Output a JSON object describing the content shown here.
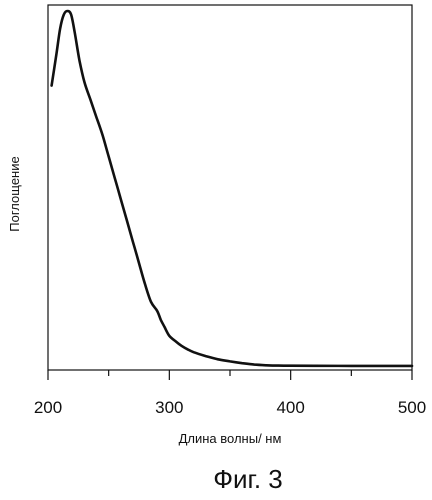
{
  "chart_data": {
    "type": "line",
    "title": "",
    "xlabel": "Длина волны/ нм",
    "ylabel": "Поглощение",
    "xlim": [
      200,
      500
    ],
    "ylim": [
      0,
      1
    ],
    "x_ticks": [
      "200",
      "300",
      "400",
      "500"
    ],
    "y_ticks_labeled": false,
    "grid": false,
    "legend": "none",
    "series": [
      {
        "color": "#111111",
        "x": [
          203,
          207,
          210,
          213,
          216,
          219,
          222,
          226,
          230,
          235,
          240,
          245,
          250,
          255,
          260,
          265,
          270,
          275,
          280,
          285,
          290,
          293,
          296,
          300,
          305,
          310,
          315,
          320,
          330,
          340,
          350,
          360,
          370,
          380,
          390,
          400,
          420,
          450,
          480,
          500
        ],
        "y": [
          0.79,
          0.88,
          0.95,
          0.99,
          1.0,
          0.99,
          0.94,
          0.86,
          0.8,
          0.75,
          0.7,
          0.65,
          0.59,
          0.53,
          0.47,
          0.41,
          0.35,
          0.29,
          0.23,
          0.18,
          0.155,
          0.13,
          0.11,
          0.085,
          0.07,
          0.057,
          0.047,
          0.039,
          0.028,
          0.019,
          0.013,
          0.008,
          0.004,
          0.002,
          0.001,
          0.0008,
          0.0005,
          0.0004,
          0.0004,
          0.0004
        ]
      }
    ]
  },
  "caption": "Фиг. 3"
}
